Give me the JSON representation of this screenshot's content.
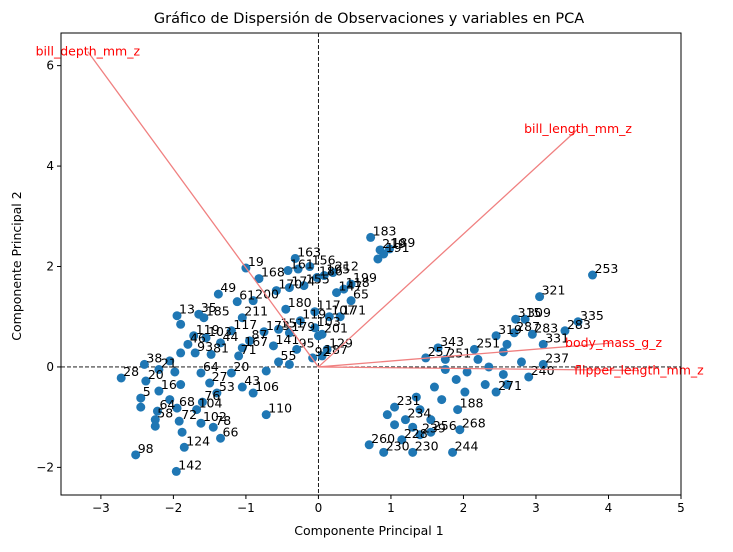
{
  "chart_data": {
    "type": "scatter",
    "title": "Gráfico de Dispersión de Observaciones y variables en PCA",
    "xlabel": "Componente Principal 1",
    "ylabel": "Componente Principal 2",
    "xlim": [
      -3.55,
      5.0
    ],
    "ylim": [
      -2.55,
      6.65
    ],
    "xticks": [
      -3,
      -2,
      -1,
      0,
      1,
      2,
      3,
      4,
      5
    ],
    "yticks": [
      -2,
      0,
      2,
      4,
      6
    ],
    "grid": false,
    "point_color": "#1f77b4",
    "arrow_color": "#f08080",
    "loading_label_color": "#ff0000",
    "reference_lines": {
      "x": 0,
      "y": 0,
      "style": "dashed",
      "color": "#000000"
    },
    "loadings": [
      {
        "name": "bill_depth_mm_z",
        "x": -3.18,
        "y": 6.28
      },
      {
        "name": "bill_length_mm_z",
        "x": 3.58,
        "y": 4.74
      },
      {
        "name": "body_mass_g_z",
        "x": 4.07,
        "y": 0.48
      },
      {
        "name": "flipper_length_mm_z",
        "x": 4.42,
        "y": -0.07
      }
    ],
    "points": [
      {
        "x": 0.72,
        "y": 2.58,
        "label": "183"
      },
      {
        "x": 0.85,
        "y": 2.33,
        "label": "219"
      },
      {
        "x": 0.98,
        "y": 2.35,
        "label": "189"
      },
      {
        "x": 0.9,
        "y": 2.25,
        "label": "191"
      },
      {
        "x": 0.82,
        "y": 2.15,
        "label": ""
      },
      {
        "x": -0.32,
        "y": 2.16,
        "label": "163"
      },
      {
        "x": -0.12,
        "y": 2.0,
        "label": "156"
      },
      {
        "x": -0.28,
        "y": 1.95,
        "label": ""
      },
      {
        "x": -0.42,
        "y": 1.92,
        "label": "161"
      },
      {
        "x": -1.0,
        "y": 1.97,
        "label": "19"
      },
      {
        "x": -0.82,
        "y": 1.76,
        "label": "168"
      },
      {
        "x": 0.2,
        "y": 1.88,
        "label": "212"
      },
      {
        "x": 0.08,
        "y": 1.82,
        "label": "195"
      },
      {
        "x": -0.02,
        "y": 1.78,
        "label": "186"
      },
      {
        "x": 0.45,
        "y": 1.65,
        "label": "199"
      },
      {
        "x": 0.35,
        "y": 1.55,
        "label": "118"
      },
      {
        "x": -0.2,
        "y": 1.62,
        "label": "155"
      },
      {
        "x": -0.4,
        "y": 1.58,
        "label": "174"
      },
      {
        "x": -0.58,
        "y": 1.52,
        "label": "170"
      },
      {
        "x": 0.25,
        "y": 1.48,
        "label": "147"
      },
      {
        "x": 0.45,
        "y": 1.32,
        "label": "65"
      },
      {
        "x": -1.38,
        "y": 1.45,
        "label": "49"
      },
      {
        "x": -1.12,
        "y": 1.3,
        "label": "61"
      },
      {
        "x": -0.9,
        "y": 1.32,
        "label": "200"
      },
      {
        "x": -0.45,
        "y": 1.15,
        "label": "180"
      },
      {
        "x": -0.05,
        "y": 1.1,
        "label": "117"
      },
      {
        "x": 0.15,
        "y": 1.0,
        "label": "107"
      },
      {
        "x": 0.3,
        "y": 1.0,
        "label": "171"
      },
      {
        "x": -1.65,
        "y": 1.05,
        "label": "35"
      },
      {
        "x": -1.95,
        "y": 1.02,
        "label": "13"
      },
      {
        "x": -1.58,
        "y": 0.98,
        "label": "185"
      },
      {
        "x": -1.05,
        "y": 0.98,
        "label": "211"
      },
      {
        "x": -1.9,
        "y": 0.85,
        "label": ""
      },
      {
        "x": -0.25,
        "y": 0.92,
        "label": "119"
      },
      {
        "x": -0.05,
        "y": 0.78,
        "label": "103"
      },
      {
        "x": 0.0,
        "y": 0.62,
        "label": ""
      },
      {
        "x": 0.05,
        "y": 0.65,
        "label": "201"
      },
      {
        "x": -1.2,
        "y": 0.72,
        "label": "117"
      },
      {
        "x": -0.75,
        "y": 0.7,
        "label": "173"
      },
      {
        "x": -0.55,
        "y": 0.75,
        "label": "151"
      },
      {
        "x": -0.4,
        "y": 0.68,
        "label": "179"
      },
      {
        "x": -1.72,
        "y": 0.62,
        "label": "119"
      },
      {
        "x": -1.55,
        "y": 0.58,
        "label": "103"
      },
      {
        "x": -1.8,
        "y": 0.45,
        "label": "46"
      },
      {
        "x": -1.35,
        "y": 0.48,
        "label": "44"
      },
      {
        "x": -0.95,
        "y": 0.52,
        "label": "87"
      },
      {
        "x": -1.05,
        "y": 0.38,
        "label": "167"
      },
      {
        "x": -0.62,
        "y": 0.42,
        "label": "141"
      },
      {
        "x": -0.3,
        "y": 0.35,
        "label": "95"
      },
      {
        "x": 0.12,
        "y": 0.35,
        "label": "129"
      },
      {
        "x": 0.05,
        "y": 0.22,
        "label": "187"
      },
      {
        "x": -0.08,
        "y": 0.18,
        "label": "92"
      },
      {
        "x": -1.7,
        "y": 0.28,
        "label": "93"
      },
      {
        "x": -1.48,
        "y": 0.25,
        "label": "81"
      },
      {
        "x": -1.9,
        "y": 0.28,
        "label": ""
      },
      {
        "x": -1.1,
        "y": 0.22,
        "label": "71"
      },
      {
        "x": -0.55,
        "y": 0.1,
        "label": "55"
      },
      {
        "x": -0.4,
        "y": 0.05,
        "label": ""
      },
      {
        "x": -2.4,
        "y": 0.05,
        "label": "38"
      },
      {
        "x": -2.05,
        "y": 0.12,
        "label": ""
      },
      {
        "x": -2.2,
        "y": -0.05,
        "label": "21"
      },
      {
        "x": -1.98,
        "y": -0.1,
        "label": ""
      },
      {
        "x": -1.62,
        "y": -0.12,
        "label": "64"
      },
      {
        "x": -1.2,
        "y": -0.12,
        "label": "20"
      },
      {
        "x": -0.72,
        "y": -0.08,
        "label": ""
      },
      {
        "x": -2.72,
        "y": -0.22,
        "label": "28"
      },
      {
        "x": -2.38,
        "y": -0.28,
        "label": "20"
      },
      {
        "x": -1.9,
        "y": -0.35,
        "label": ""
      },
      {
        "x": -1.5,
        "y": -0.32,
        "label": "27"
      },
      {
        "x": -1.05,
        "y": -0.4,
        "label": "43"
      },
      {
        "x": -2.2,
        "y": -0.48,
        "label": "16"
      },
      {
        "x": -1.4,
        "y": -0.52,
        "label": "53"
      },
      {
        "x": -0.9,
        "y": -0.52,
        "label": "106"
      },
      {
        "x": -2.45,
        "y": -0.62,
        "label": "5"
      },
      {
        "x": -2.05,
        "y": -0.65,
        "label": ""
      },
      {
        "x": -1.6,
        "y": -0.7,
        "label": "76"
      },
      {
        "x": -2.45,
        "y": -0.8,
        "label": ""
      },
      {
        "x": -2.22,
        "y": -0.88,
        "label": "64"
      },
      {
        "x": -1.95,
        "y": -0.82,
        "label": "68"
      },
      {
        "x": -1.68,
        "y": -0.85,
        "label": "104"
      },
      {
        "x": -0.72,
        "y": -0.95,
        "label": "110"
      },
      {
        "x": -2.25,
        "y": -1.05,
        "label": "58"
      },
      {
        "x": -1.92,
        "y": -1.08,
        "label": "72"
      },
      {
        "x": -1.62,
        "y": -1.12,
        "label": "102"
      },
      {
        "x": -2.25,
        "y": -1.18,
        "label": ""
      },
      {
        "x": -1.45,
        "y": -1.2,
        "label": "78"
      },
      {
        "x": -1.35,
        "y": -1.42,
        "label": "66"
      },
      {
        "x": -1.88,
        "y": -1.3,
        "label": ""
      },
      {
        "x": -1.85,
        "y": -1.6,
        "label": "124"
      },
      {
        "x": -2.52,
        "y": -1.75,
        "label": "98"
      },
      {
        "x": -1.96,
        "y": -2.08,
        "label": "142"
      },
      {
        "x": 3.78,
        "y": 1.83,
        "label": "253"
      },
      {
        "x": 3.05,
        "y": 1.4,
        "label": "321"
      },
      {
        "x": 3.58,
        "y": 0.9,
        "label": "335"
      },
      {
        "x": 2.72,
        "y": 0.95,
        "label": "315"
      },
      {
        "x": 2.85,
        "y": 0.95,
        "label": "309"
      },
      {
        "x": 3.4,
        "y": 0.72,
        "label": "283"
      },
      {
        "x": 2.45,
        "y": 0.62,
        "label": "319"
      },
      {
        "x": 2.7,
        "y": 0.68,
        "label": "287"
      },
      {
        "x": 2.95,
        "y": 0.65,
        "label": "283"
      },
      {
        "x": 2.6,
        "y": 0.45,
        "label": ""
      },
      {
        "x": 3.1,
        "y": 0.45,
        "label": "331"
      },
      {
        "x": 1.65,
        "y": 0.38,
        "label": "343"
      },
      {
        "x": 2.15,
        "y": 0.35,
        "label": "251"
      },
      {
        "x": 2.55,
        "y": 0.3,
        "label": ""
      },
      {
        "x": 1.48,
        "y": 0.18,
        "label": "257"
      },
      {
        "x": 1.75,
        "y": 0.15,
        "label": "251"
      },
      {
        "x": 2.2,
        "y": 0.15,
        "label": ""
      },
      {
        "x": 2.8,
        "y": 0.1,
        "label": ""
      },
      {
        "x": 3.1,
        "y": 0.05,
        "label": "237"
      },
      {
        "x": 2.35,
        "y": 0.0,
        "label": ""
      },
      {
        "x": 1.75,
        "y": -0.05,
        "label": ""
      },
      {
        "x": 2.05,
        "y": -0.1,
        "label": ""
      },
      {
        "x": 2.55,
        "y": -0.15,
        "label": ""
      },
      {
        "x": 2.9,
        "y": -0.2,
        "label": "240"
      },
      {
        "x": 1.9,
        "y": -0.25,
        "label": ""
      },
      {
        "x": 2.3,
        "y": -0.35,
        "label": ""
      },
      {
        "x": 2.6,
        "y": -0.35,
        "label": ""
      },
      {
        "x": 1.6,
        "y": -0.4,
        "label": ""
      },
      {
        "x": 2.02,
        "y": -0.5,
        "label": ""
      },
      {
        "x": 2.45,
        "y": -0.5,
        "label": "271"
      },
      {
        "x": 1.35,
        "y": -0.6,
        "label": ""
      },
      {
        "x": 1.7,
        "y": -0.65,
        "label": ""
      },
      {
        "x": 1.05,
        "y": -0.8,
        "label": "231"
      },
      {
        "x": 1.4,
        "y": -0.85,
        "label": ""
      },
      {
        "x": 1.92,
        "y": -0.85,
        "label": "188"
      },
      {
        "x": 0.95,
        "y": -0.95,
        "label": ""
      },
      {
        "x": 1.2,
        "y": -1.05,
        "label": "234"
      },
      {
        "x": 1.55,
        "y": -1.05,
        "label": ""
      },
      {
        "x": 1.05,
        "y": -1.15,
        "label": ""
      },
      {
        "x": 1.3,
        "y": -1.2,
        "label": ""
      },
      {
        "x": 1.95,
        "y": -1.25,
        "label": "268"
      },
      {
        "x": 1.4,
        "y": -1.35,
        "label": "239"
      },
      {
        "x": 1.55,
        "y": -1.3,
        "label": "256"
      },
      {
        "x": 0.7,
        "y": -1.55,
        "label": "260"
      },
      {
        "x": 1.15,
        "y": -1.45,
        "label": "228"
      },
      {
        "x": 0.9,
        "y": -1.7,
        "label": "230"
      },
      {
        "x": 1.3,
        "y": -1.7,
        "label": "230"
      },
      {
        "x": 1.85,
        "y": -1.7,
        "label": "244"
      }
    ]
  }
}
